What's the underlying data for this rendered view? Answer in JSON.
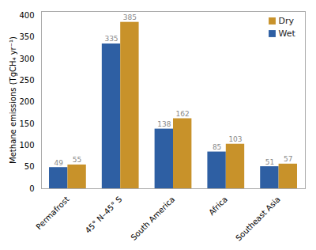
{
  "chart_data": {
    "type": "bar",
    "categories": [
      "Permafrost",
      "45° N–45° S",
      "South America",
      "Africa",
      "Southeast Asia"
    ],
    "series": [
      {
        "name": "Wet",
        "color": "#2e5fa3",
        "values": [
          49,
          335,
          138,
          85,
          51
        ]
      },
      {
        "name": "Dry",
        "color": "#c8922a",
        "values": [
          55,
          385,
          162,
          103,
          57
        ]
      }
    ],
    "ylabel": "Methane emissions (TgCH₄ yr⁻¹)",
    "ylim": [
      0,
      410
    ],
    "yticks": [
      0,
      50,
      100,
      150,
      200,
      250,
      300,
      350,
      400
    ],
    "legend": "upper right",
    "data_labels": true
  }
}
